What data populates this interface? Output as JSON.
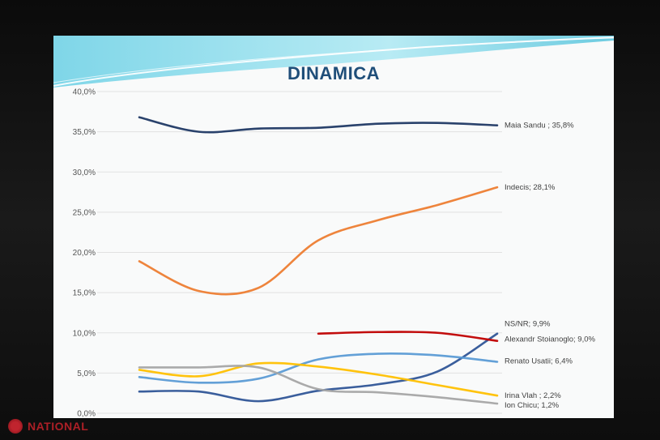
{
  "logo": {
    "text": "NATIONAL"
  },
  "slide": {
    "title": "DINAMICA"
  },
  "chart_data": {
    "type": "line",
    "title": "DINAMICA",
    "ylim": [
      0,
      40
    ],
    "yticks": [
      "0,0%",
      "5,0%",
      "10,0%",
      "15,0%",
      "20,0%",
      "25,0%",
      "30,0%",
      "35,0%",
      "40,0%"
    ],
    "grid": true,
    "x": [
      1,
      2,
      3,
      4,
      5,
      6,
      7
    ],
    "series": [
      {
        "name": "Maia Sandu",
        "label": "Maia Sandu ; 35,8%",
        "color": "#1f3864",
        "values": [
          36.8,
          35.0,
          35.4,
          35.5,
          36.0,
          36.1,
          35.8
        ]
      },
      {
        "name": "Indecis",
        "label": "Indecis; 28,1%",
        "color": "#ed7d31",
        "values": [
          18.9,
          15.2,
          15.6,
          21.5,
          24.0,
          25.9,
          28.1
        ]
      },
      {
        "name": "NS/NR",
        "label": "NS/NR; 9,9%",
        "color": "#2f5597",
        "values": [
          2.7,
          2.7,
          1.5,
          2.8,
          3.6,
          5.2,
          9.9
        ]
      },
      {
        "name": "Alexandr Stoianoglo",
        "label": "Alexandr Stoianoglo; 9,0%",
        "color": "#c00000",
        "values": [
          null,
          null,
          null,
          9.9,
          10.1,
          10.0,
          9.0
        ]
      },
      {
        "name": "Renato Usatii",
        "label": "Renato Usatii; 6,4%",
        "color": "#5b9bd5",
        "values": [
          4.5,
          3.8,
          4.3,
          6.7,
          7.4,
          7.2,
          6.4
        ]
      },
      {
        "name": "Irina Vlah",
        "label": "Irina Vlah ; 2,2%",
        "color": "#ffc000",
        "values": [
          5.4,
          4.6,
          6.2,
          5.8,
          4.8,
          3.5,
          2.2
        ]
      },
      {
        "name": "Ion Chicu",
        "label": "Ion Chicu; 1,2%",
        "color": "#a5a5a5",
        "values": [
          5.7,
          5.7,
          5.7,
          3.0,
          2.6,
          2.0,
          1.2
        ]
      }
    ]
  }
}
